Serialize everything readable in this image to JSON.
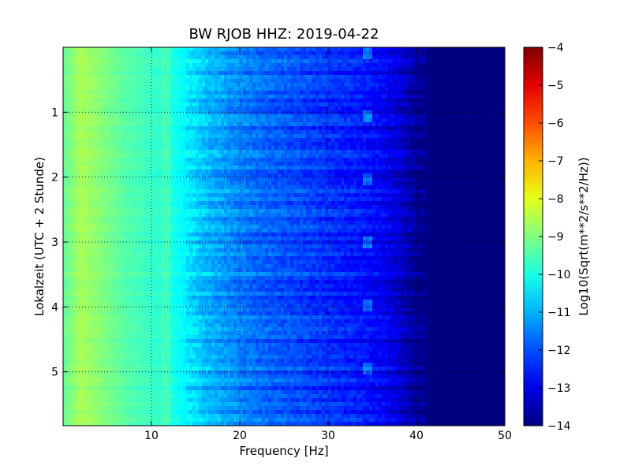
{
  "chart_data": {
    "type": "heatmap",
    "title": "BW RJOB HHZ: 2019-04-22",
    "xlabel": "Frequency [Hz]",
    "ylabel": "Lokalzeit (UTC + 2 Stunde)",
    "xlim": [
      0,
      50
    ],
    "ylim": [
      5.83,
      0.0
    ],
    "x_ticks": [
      10,
      20,
      30,
      40,
      50
    ],
    "y_ticks": [
      1,
      2,
      3,
      4,
      5
    ],
    "grid": true,
    "colormap": "jet",
    "colorbar": {
      "label": "Log10(Sqrt(m**2/s**2/Hz))",
      "range": [
        -14,
        -4
      ],
      "ticks": [
        -4,
        -5,
        -6,
        -7,
        -8,
        -9,
        -10,
        -11,
        -12,
        -13,
        -14
      ]
    },
    "z_profile_by_frequency": {
      "frequency_hz": [
        0,
        2,
        4,
        7,
        10,
        12,
        14,
        16,
        18,
        20,
        23,
        26,
        30,
        33,
        36,
        38,
        40,
        42,
        50
      ],
      "log10_psd": [
        -9.3,
        -8.6,
        -8.9,
        -9.4,
        -9.7,
        -9.9,
        -10.4,
        -10.9,
        -11.2,
        -11.5,
        -11.8,
        -12.0,
        -12.3,
        -12.5,
        -12.8,
        -13.2,
        -13.8,
        -14.0,
        -14.0
      ]
    }
  }
}
